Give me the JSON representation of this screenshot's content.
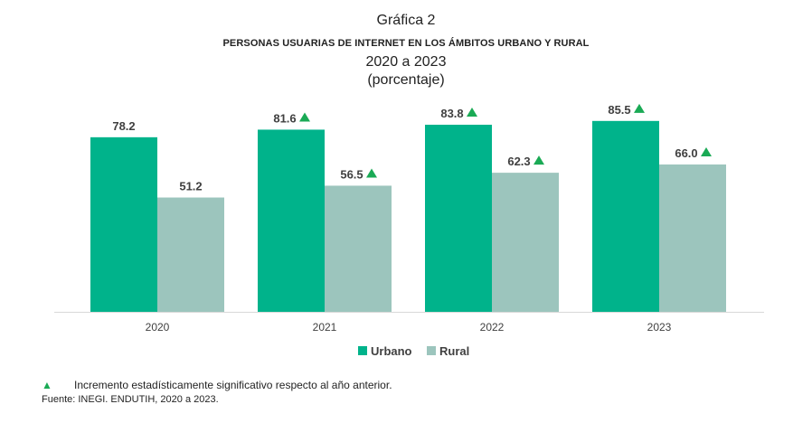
{
  "header": {
    "label": "Gráfica 2",
    "title": "PERSONAS USUARIAS DE INTERNET EN LOS ÁMBITOS URBANO Y RURAL",
    "years": "2020 a 2023",
    "unit": "(porcentaje)"
  },
  "chart_data": {
    "type": "bar",
    "categories": [
      "2020",
      "2021",
      "2022",
      "2023"
    ],
    "series": [
      {
        "name": "Urbano",
        "color": "#00b38b",
        "values": [
          78.2,
          81.6,
          83.8,
          85.5
        ],
        "labels": [
          "78.2",
          "81.6",
          "83.8",
          "85.5"
        ],
        "significant": [
          false,
          true,
          true,
          true
        ]
      },
      {
        "name": "Rural",
        "color": "#9cc5bd",
        "values": [
          51.2,
          56.5,
          62.3,
          66.0
        ],
        "labels": [
          "51.2",
          "56.5",
          "62.3",
          "66.0"
        ],
        "significant": [
          false,
          true,
          true,
          true
        ]
      }
    ],
    "ylim": [
      0,
      100
    ],
    "legend": "bottom-center",
    "marker_color": "#1aaa55"
  },
  "footnote": {
    "text": "Incremento estadísticamente significativo respecto al año anterior.",
    "source": "Fuente: INEGI. ENDUTIH, 2020 a 2023."
  }
}
